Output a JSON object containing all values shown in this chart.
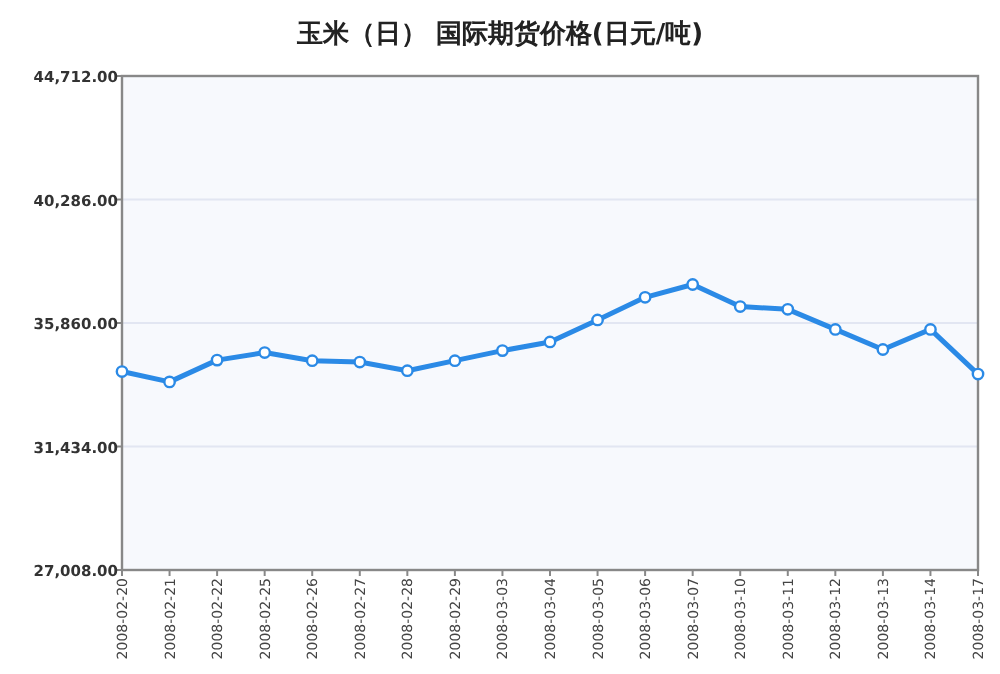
{
  "chart_data": {
    "type": "line",
    "title": "玉米（日） 国际期货价格(日元/吨)",
    "categories": [
      "2008-02-20",
      "2008-02-21",
      "2008-02-22",
      "2008-02-25",
      "2008-02-26",
      "2008-02-27",
      "2008-02-28",
      "2008-02-29",
      "2008-03-03",
      "2008-03-04",
      "2008-03-05",
      "2008-03-06",
      "2008-03-07",
      "2008-03-10",
      "2008-03-11",
      "2008-03-12",
      "2008-03-13",
      "2008-03-14",
      "2008-03-17"
    ],
    "series": [
      {
        "color": "#2b8ae6",
        "values": [
          34120,
          33750,
          34530,
          34800,
          34510,
          34460,
          34150,
          34510,
          34870,
          35180,
          35970,
          36780,
          37240,
          36450,
          36350,
          35630,
          34910,
          35630,
          34030
        ]
      }
    ],
    "ylim": [
      27008,
      44712
    ],
    "yticks": [
      {
        "value": 27008,
        "label": "27,008.00"
      },
      {
        "value": 31434,
        "label": "31,434.00"
      },
      {
        "value": 35860,
        "label": "35,860.00"
      },
      {
        "value": 40286,
        "label": "40,286.00"
      },
      {
        "value": 44712,
        "label": "44,712.00"
      }
    ],
    "grid": "y",
    "marker": "circle",
    "line_style": "solid"
  }
}
